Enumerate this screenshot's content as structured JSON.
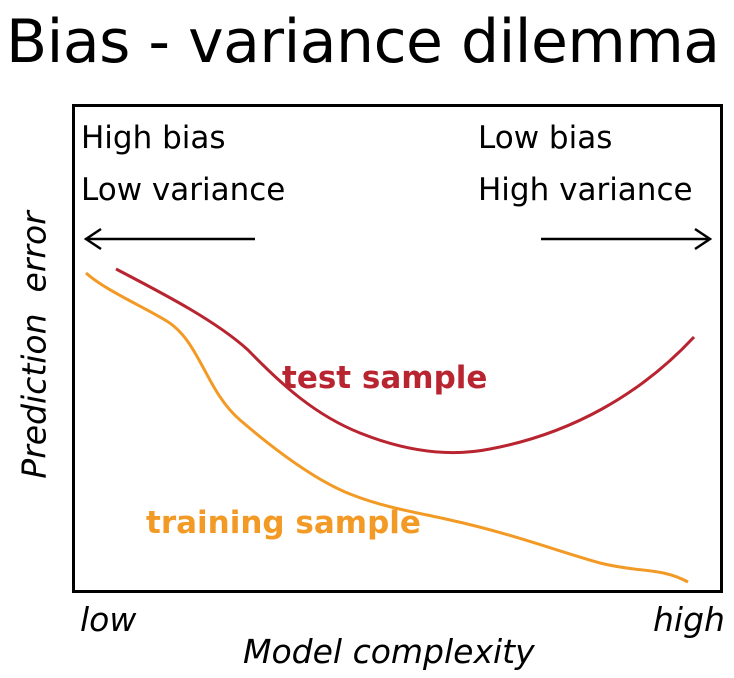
{
  "title": "Bias - variance dilemma",
  "corner_left": {
    "line1": "High bias",
    "line2": "Low variance"
  },
  "corner_right": {
    "line1": "Low bias",
    "line2": "High variance"
  },
  "axes": {
    "ylabel": "Prediction  error",
    "xlabel": "Model complexity",
    "x_low": "low",
    "x_high": "high"
  },
  "curves": {
    "test": {
      "label": "test sample",
      "color": "#b82430"
    },
    "training": {
      "label": "training sample",
      "color": "#f29a25"
    }
  }
}
